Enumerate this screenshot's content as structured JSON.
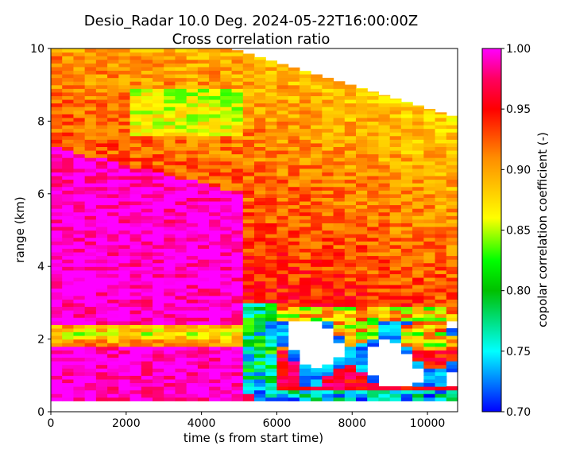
{
  "chart_data": {
    "type": "heatmap",
    "title": "Desio_Radar 10.0 Deg. 2024-05-22T16:00:00Z",
    "subtitle": "Cross correlation ratio",
    "xlabel": "time (s from start time)",
    "ylabel": "range (km)",
    "colorbar_label": "copolar correlation coefficient (-)",
    "xlim": [
      0,
      10800
    ],
    "ylim": [
      0,
      10
    ],
    "clim": [
      0.7,
      1.0
    ],
    "x_ticks": [
      0,
      2000,
      4000,
      6000,
      8000,
      10000
    ],
    "x_tick_labels": [
      "0",
      "2000",
      "4000",
      "6000",
      "8000",
      "10000"
    ],
    "y_ticks": [
      0,
      2,
      4,
      6,
      8,
      10
    ],
    "y_tick_labels": [
      "0",
      "2",
      "4",
      "6",
      "8",
      "10"
    ],
    "c_ticks": [
      0.7,
      0.75,
      0.8,
      0.85,
      0.9,
      0.95,
      1.0
    ],
    "c_tick_labels": [
      "0.70",
      "0.75",
      "0.80",
      "0.85",
      "0.90",
      "0.95",
      "1.00"
    ],
    "colormap_stops": [
      {
        "value": 0.7,
        "color": "#0000ff"
      },
      {
        "value": 0.75,
        "color": "#00ffff"
      },
      {
        "value": 0.8,
        "color": "#00c000"
      },
      {
        "value": 0.825,
        "color": "#00ff00"
      },
      {
        "value": 0.86,
        "color": "#ffff00"
      },
      {
        "value": 0.91,
        "color": "#ff8c00"
      },
      {
        "value": 0.95,
        "color": "#ff0000"
      },
      {
        "value": 0.975,
        "color": "#ff0060"
      },
      {
        "value": 1.0,
        "color": "#ff00ff"
      }
    ],
    "data_extent": {
      "range_start_km": 0.3,
      "range_top_km_by_time": [
        [
          0,
          10
        ],
        [
          4800,
          10
        ],
        [
          10800,
          8.1
        ]
      ],
      "time_step_s": 300,
      "range_step_km": 0.1
    },
    "features": [
      {
        "name": "melting layer band",
        "range_km": [
          1.8,
          2.4
        ],
        "time_s": [
          0,
          5500
        ],
        "value": 0.88
      },
      {
        "name": "high correlation region",
        "range_km": [
          0.3,
          7.5
        ],
        "time_s": [
          0,
          5000
        ],
        "value": 0.99
      },
      {
        "name": "low correlation clutter",
        "range_km": [
          0.6,
          2.5
        ],
        "time_s": [
          5500,
          10800
        ],
        "value": 0.72
      }
    ]
  }
}
